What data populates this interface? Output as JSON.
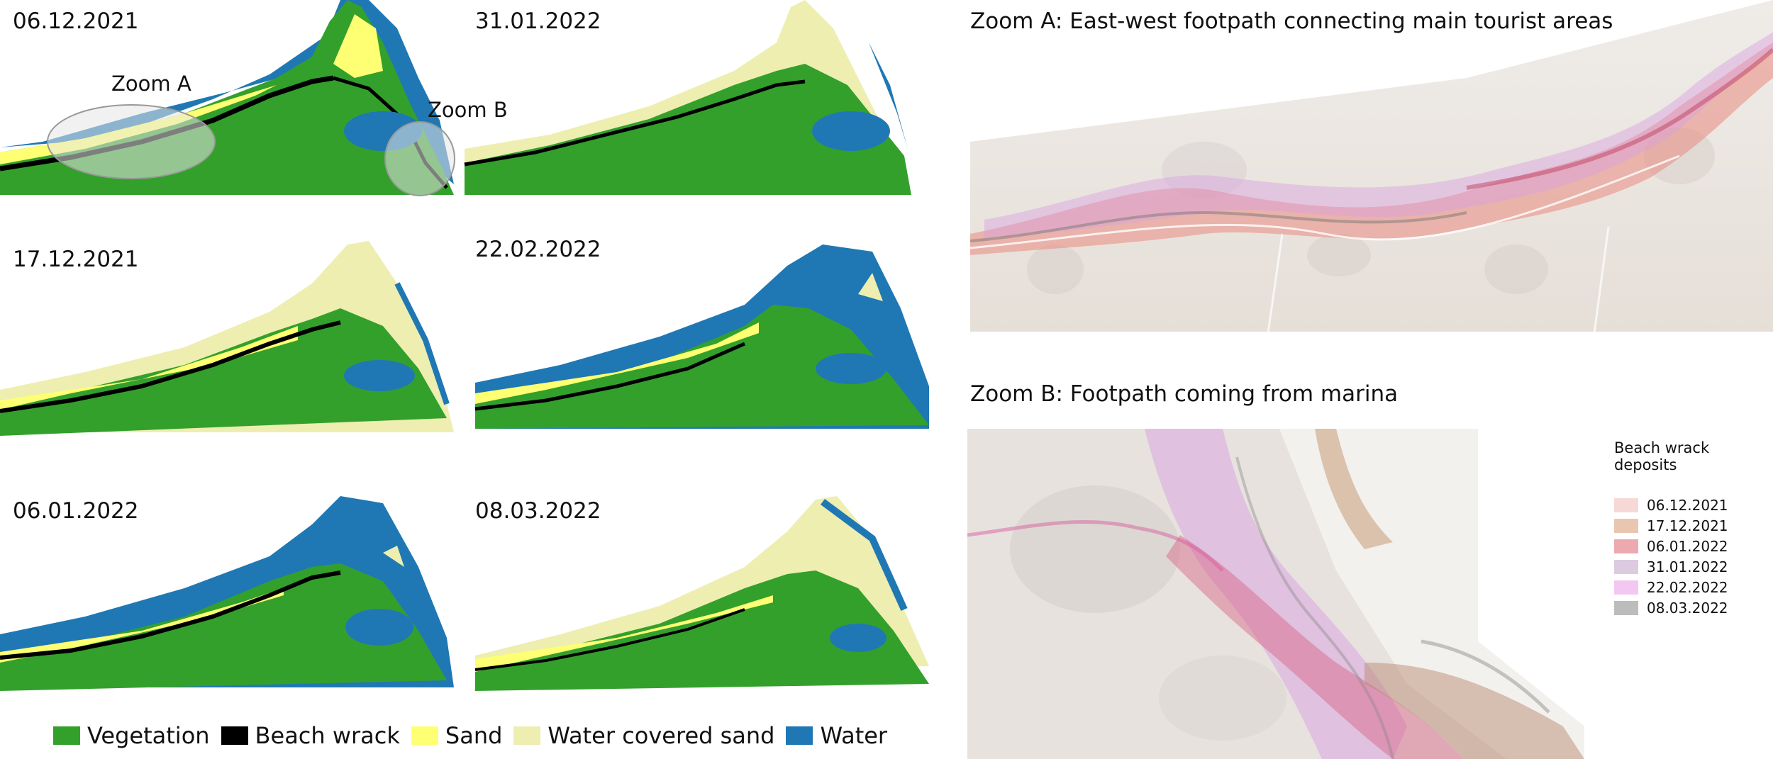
{
  "colors": {
    "vegetation": "#33a02c",
    "beach_wrack": "#000000",
    "sand": "#ffff73",
    "water_covered_sand": "#eeeeb0",
    "water": "#1f78b4"
  },
  "maps": [
    {
      "date": "06.12.2021"
    },
    {
      "date": "31.01.2022"
    },
    {
      "date": "17.12.2021"
    },
    {
      "date": "22.02.2022"
    },
    {
      "date": "06.01.2022"
    },
    {
      "date": "08.03.2022"
    }
  ],
  "callouts": {
    "zoom_a": "Zoom A",
    "zoom_b": "Zoom B"
  },
  "legend": {
    "items": [
      {
        "label": "Vegetation",
        "color": "#33a02c"
      },
      {
        "label": "Beach wrack",
        "color": "#000000"
      },
      {
        "label": "Sand",
        "color": "#ffff73"
      },
      {
        "label": "Water covered sand",
        "color": "#eeeeb0"
      },
      {
        "label": "Water",
        "color": "#1f78b4"
      }
    ]
  },
  "zoom_panels": {
    "a_title": "Zoom A: East-west footpath connecting main tourist areas",
    "b_title": "Zoom B: Footpath coming from marina"
  },
  "deposit_legend": {
    "title": "Beach wrack deposits",
    "items": [
      {
        "label": "06.12.2021",
        "color": "#f6d9d6"
      },
      {
        "label": "17.12.2021",
        "color": "#e8c6b0"
      },
      {
        "label": "06.01.2022",
        "color": "#ecaab0"
      },
      {
        "label": "31.01.2022",
        "color": "#dccbe0"
      },
      {
        "label": "22.02.2022",
        "color": "#f2c8f2"
      },
      {
        "label": "08.03.2022",
        "color": "#bcbcbc"
      }
    ]
  }
}
